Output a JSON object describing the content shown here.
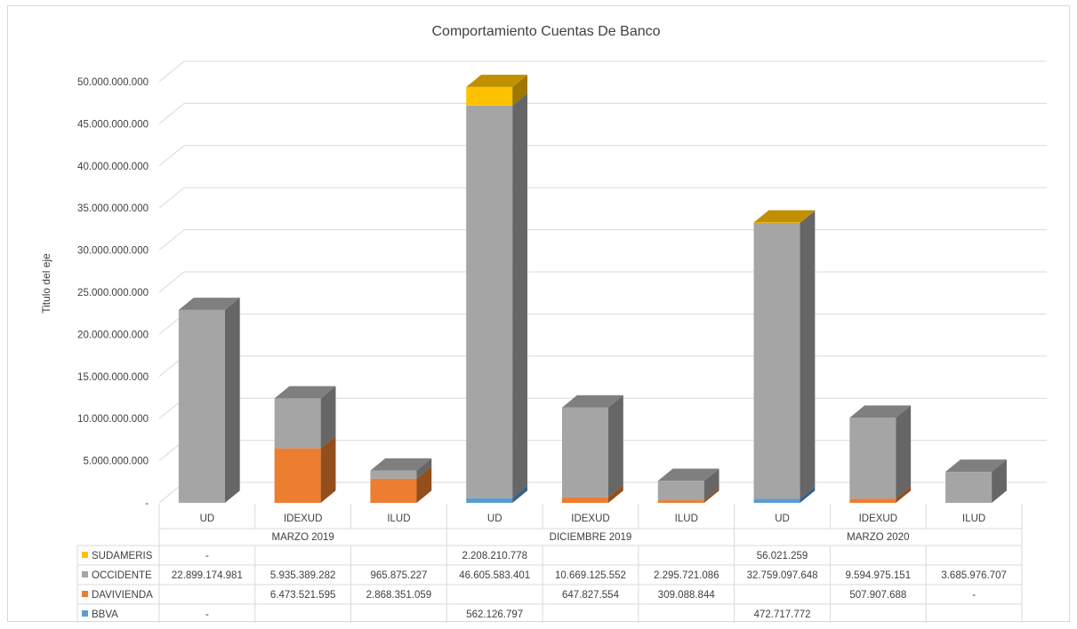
{
  "chart_data": {
    "type": "bar",
    "stacked": true,
    "title": "Comportamiento Cuentas De Banco",
    "ylabel": "Titulo del eje",
    "xlabel": "",
    "ylim": [
      0,
      50000000000
    ],
    "yticks": [
      {
        "value": 0,
        "label": "-"
      },
      {
        "value": 5000000000,
        "label": "5.000.000.000"
      },
      {
        "value": 10000000000,
        "label": "10.000.000.000"
      },
      {
        "value": 15000000000,
        "label": "15.000.000.000"
      },
      {
        "value": 20000000000,
        "label": "20.000.000.000"
      },
      {
        "value": 25000000000,
        "label": "25.000.000.000"
      },
      {
        "value": 30000000000,
        "label": "30.000.000.000"
      },
      {
        "value": 35000000000,
        "label": "35.000.000.000"
      },
      {
        "value": 40000000000,
        "label": "40.000.000.000"
      },
      {
        "value": 45000000000,
        "label": "45.000.000.000"
      },
      {
        "value": 50000000000,
        "label": "50.000.000.000"
      }
    ],
    "grid": true,
    "legend": "data-table-left",
    "groups": [
      {
        "label": "MARZO 2019",
        "categories": [
          "UD",
          "IDEXUD",
          "ILUD"
        ]
      },
      {
        "label": "DICIEMBRE 2019",
        "categories": [
          "UD",
          "IDEXUD",
          "ILUD"
        ]
      },
      {
        "label": "MARZO 2020",
        "categories": [
          "UD",
          "IDEXUD",
          "ILUD"
        ]
      }
    ],
    "series": [
      {
        "name": "SUDAMERIS",
        "color": "#ffc000",
        "top_color": "#c09000",
        "values": [
          0,
          null,
          null,
          2208210778,
          null,
          null,
          56021259,
          null,
          null
        ],
        "labels": [
          "-",
          "",
          "",
          "2.208.210.778",
          "",
          "",
          "56.021.259",
          "",
          ""
        ]
      },
      {
        "name": "OCCIDENTE",
        "color": "#a5a5a5",
        "top_color": "#7f7f7f",
        "values": [
          22899174981,
          5935389282,
          965875227,
          46605583401,
          10669125552,
          2295721086,
          32759097648,
          9594975151,
          3685976707
        ],
        "labels": [
          "22.899.174.981",
          "5.935.389.282",
          "965.875.227",
          "46.605.583.401",
          "10.669.125.552",
          "2.295.721.086",
          "32.759.097.648",
          "9.594.975.151",
          "3.685.976.707"
        ]
      },
      {
        "name": "DAVIVIENDA",
        "color": "#ed7d31",
        "top_color": "#b85c1e",
        "values": [
          null,
          6473521595,
          2868351059,
          null,
          647827554,
          309088844,
          null,
          507907688,
          0
        ],
        "labels": [
          "",
          "6.473.521.595",
          "2.868.351.059",
          "",
          "647.827.554",
          "309.088.844",
          "",
          "507.907.688",
          "-"
        ]
      },
      {
        "name": "BBVA",
        "color": "#5b9bd5",
        "top_color": "#3f78ad",
        "values": [
          0,
          null,
          null,
          562126797,
          null,
          null,
          472717772,
          null,
          null
        ],
        "labels": [
          "-",
          "",
          "",
          "562.126.797",
          "",
          "",
          "472.717.772",
          "",
          ""
        ]
      }
    ]
  }
}
